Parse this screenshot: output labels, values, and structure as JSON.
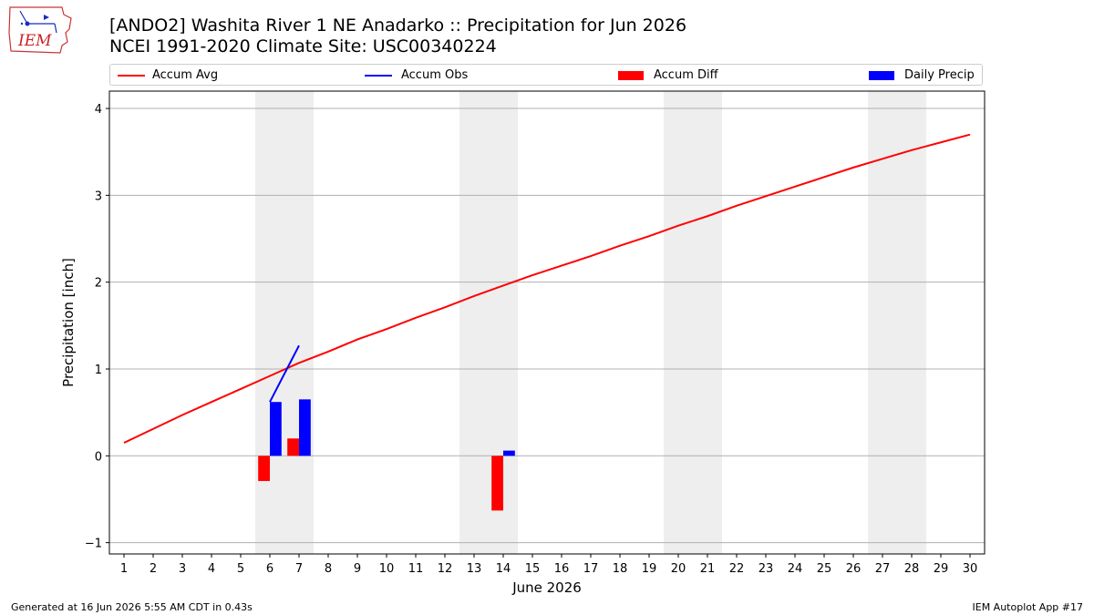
{
  "branding": {
    "logo_text": "IEM"
  },
  "header": {
    "title_line1": "[ANDO2] Washita River 1 NE Anadarko :: Precipitation for Jun 2026",
    "title_line2": "NCEI 1991-2020 Climate Site: USC00340224"
  },
  "legend": {
    "items": [
      {
        "label": "Accum Avg",
        "color": "#ff0000",
        "kind": "line"
      },
      {
        "label": "Accum Obs",
        "color": "#0000ff",
        "kind": "line"
      },
      {
        "label": "Accum Diff",
        "color": "#ff0000",
        "kind": "bar"
      },
      {
        "label": "Daily Precip",
        "color": "#0000ff",
        "kind": "bar"
      }
    ]
  },
  "footer": {
    "generated": "Generated at 16 Jun 2026 5:55 AM CDT in 0.43s",
    "app": "IEM Autoplot App #17"
  },
  "chart_data": {
    "type": "line",
    "xlabel": "June 2026",
    "ylabel": "Precipitation [inch]",
    "xlim": [
      0.5,
      30.5
    ],
    "ylim": [
      -1.13,
      4.2
    ],
    "x_ticks": [
      1,
      2,
      3,
      4,
      5,
      6,
      7,
      8,
      9,
      10,
      11,
      12,
      13,
      14,
      15,
      16,
      17,
      18,
      19,
      20,
      21,
      22,
      23,
      24,
      25,
      26,
      27,
      28,
      29,
      30
    ],
    "y_ticks": [
      -1,
      0,
      1,
      2,
      3,
      4
    ],
    "grid": "horizontal",
    "legend_placement": "top",
    "weekend_shading": [
      [
        6,
        7
      ],
      [
        13,
        14
      ],
      [
        20,
        21
      ],
      [
        27,
        28
      ]
    ],
    "series": [
      {
        "name": "Accum Avg",
        "type": "line",
        "color": "#ff0000",
        "x": [
          1,
          2,
          3,
          4,
          5,
          6,
          7,
          8,
          9,
          10,
          11,
          12,
          13,
          14,
          15,
          16,
          17,
          18,
          19,
          20,
          21,
          22,
          23,
          24,
          25,
          26,
          27,
          28,
          29,
          30
        ],
        "values": [
          0.15,
          0.31,
          0.47,
          0.62,
          0.77,
          0.92,
          1.07,
          1.2,
          1.34,
          1.46,
          1.59,
          1.71,
          1.84,
          1.96,
          2.08,
          2.19,
          2.3,
          2.42,
          2.53,
          2.65,
          2.76,
          2.88,
          2.99,
          3.1,
          3.21,
          3.32,
          3.42,
          3.52,
          3.61,
          3.7
        ]
      },
      {
        "name": "Accum Obs",
        "type": "line",
        "color": "#0000ff",
        "x": [
          6,
          7
        ],
        "values": [
          0.62,
          1.27
        ]
      },
      {
        "name": "Accum Diff",
        "type": "bar",
        "color": "#ff0000",
        "x": [
          6,
          7,
          14
        ],
        "values": [
          -0.29,
          0.2,
          -0.63
        ]
      },
      {
        "name": "Daily Precip",
        "type": "bar",
        "color": "#0000ff",
        "x": [
          6,
          7,
          14
        ],
        "values": [
          0.62,
          0.65,
          0.06
        ]
      }
    ]
  }
}
